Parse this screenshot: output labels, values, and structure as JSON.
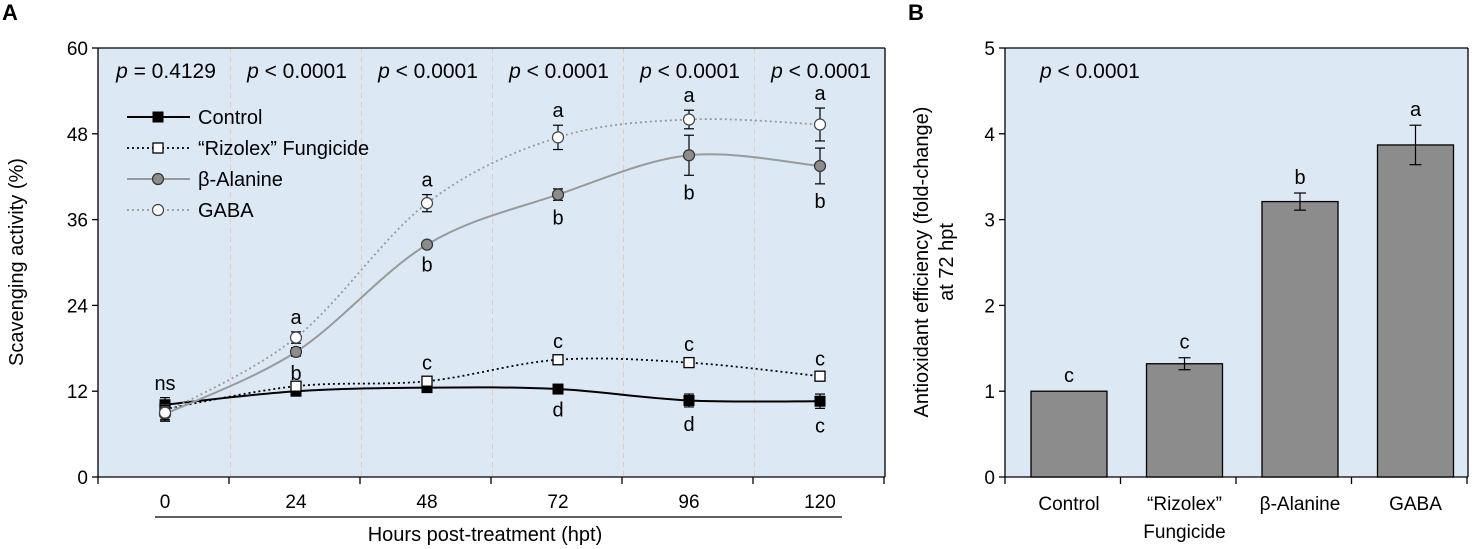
{
  "colors": {
    "plot_bg": "#dce9f5",
    "control": "#000000",
    "fungicide": "#000000",
    "alanine": "#9a9a9a",
    "gaba": "#9a9a9a",
    "bar_fill": "#8c8c8c",
    "vgrid": "#e8c8c0"
  },
  "chart_data": [
    {
      "panel": "A",
      "type": "line",
      "xlabel": "Hours post-treatment (hpt)",
      "ylabel": "Scavenging activity (%)",
      "ylim": [
        0,
        60
      ],
      "yticks": [
        "0",
        "12",
        "24",
        "36",
        "48",
        "60"
      ],
      "x": [
        "0",
        "24",
        "48",
        "72",
        "96",
        "120"
      ],
      "p_values": [
        {
          "italic": "p",
          "text": " = 0.4129"
        },
        {
          "italic": "p",
          "text": " < 0.0001"
        },
        {
          "italic": "p",
          "text": " < 0.0001"
        },
        {
          "italic": "p",
          "text": " < 0.0001"
        },
        {
          "italic": "p",
          "text": " < 0.0001"
        },
        {
          "italic": "p",
          "text": " < 0.0001"
        }
      ],
      "annotation_ns": "ns",
      "series": [
        {
          "key": "control",
          "name": "Control",
          "dash": "solid",
          "marker": "filled-square",
          "values": [
            10.1,
            12.0,
            12.5,
            12.3,
            10.7,
            10.6
          ],
          "errors": [
            1.0,
            0.6,
            0.6,
            0.5,
            0.9,
            1.0
          ],
          "letters": [
            "",
            "",
            "",
            "d",
            "d",
            "c"
          ]
        },
        {
          "key": "fungicide",
          "name": "“Rizolex” Fungicide",
          "dash": "dotted",
          "marker": "open-square",
          "values": [
            9.5,
            12.7,
            13.4,
            16.4,
            16.0,
            14.1
          ],
          "errors": [
            0.9,
            0.5,
            0.5,
            0.5,
            0.5,
            0.4
          ],
          "letters": [
            "",
            "",
            "c",
            "c",
            "c",
            "c"
          ]
        },
        {
          "key": "alanine",
          "name": "β-Alanine",
          "dash": "solid",
          "marker": "grey-circle",
          "values": [
            8.8,
            17.5,
            32.5,
            39.5,
            45.0,
            43.5
          ],
          "errors": [
            1.0,
            0.6,
            0.4,
            0.8,
            2.8,
            2.5
          ],
          "letters": [
            "",
            "b",
            "b",
            "b",
            "b",
            "b"
          ]
        },
        {
          "key": "gaba",
          "name": "GABA",
          "dash": "dotted",
          "marker": "open-circle",
          "values": [
            9.0,
            19.5,
            38.3,
            47.5,
            50.0,
            49.3
          ],
          "errors": [
            1.0,
            0.8,
            1.2,
            1.7,
            1.3,
            2.3
          ],
          "letters": [
            "",
            "a",
            "a",
            "a",
            "a",
            "a"
          ]
        }
      ]
    },
    {
      "panel": "B",
      "type": "bar",
      "ylabel_line1": "Antioxidant efficiency (fold-change)",
      "ylabel_line2": "at 72 hpt",
      "ylim": [
        0,
        5
      ],
      "yticks": [
        "0",
        "1",
        "2",
        "3",
        "4",
        "5"
      ],
      "p_value": {
        "italic": "p",
        "text": " < 0.0001"
      },
      "categories": [
        {
          "line1": "Control",
          "line2": ""
        },
        {
          "line1": "“Rizolex”",
          "line2": "Fungicide"
        },
        {
          "line1": "β-Alanine",
          "line2": ""
        },
        {
          "line1": "GABA",
          "line2": ""
        }
      ],
      "values": [
        1.0,
        1.32,
        3.21,
        3.87
      ],
      "errors": [
        0.0,
        0.07,
        0.1,
        0.23
      ],
      "letters": [
        "c",
        "c",
        "b",
        "a"
      ]
    }
  ]
}
